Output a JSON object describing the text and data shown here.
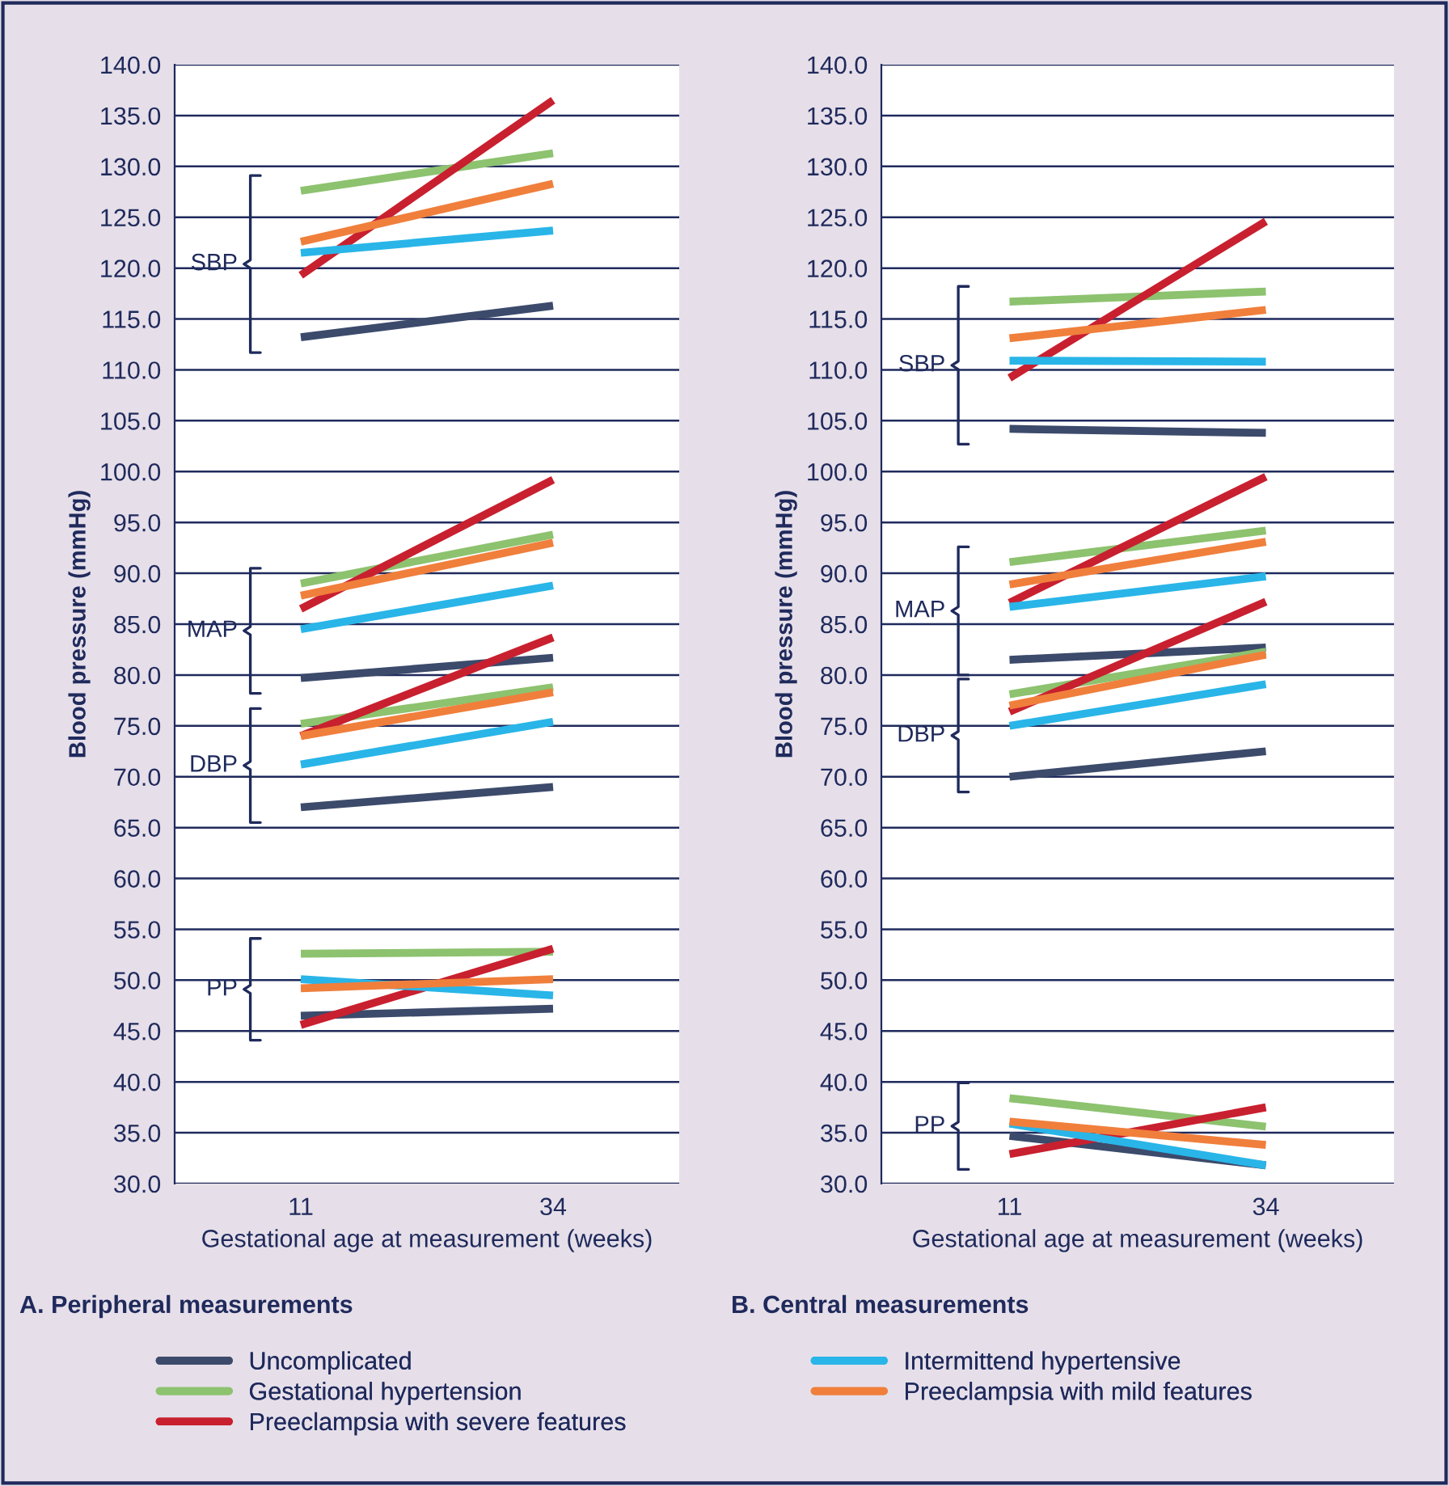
{
  "chart_data": [
    {
      "type": "line",
      "title": "A. Peripheral measurements",
      "xlabel": "Gestational age at measurement (weeks)",
      "ylabel": "Blood pressure (mmHg)",
      "categories": [
        "11",
        "34"
      ],
      "ylim": [
        30,
        140
      ],
      "yticks": [
        {
          "value": 30,
          "label": "30.0"
        },
        {
          "value": 35,
          "label": "35.0"
        },
        {
          "value": 40,
          "label": "40.0"
        },
        {
          "value": 45,
          "label": "45.0"
        },
        {
          "value": 50,
          "label": "50.0"
        },
        {
          "value": 55,
          "label": "55.0"
        },
        {
          "value": 60,
          "label": "60.0"
        },
        {
          "value": 65,
          "label": "65.0"
        },
        {
          "value": 70,
          "label": "70.0"
        },
        {
          "value": 75,
          "label": "75.0"
        },
        {
          "value": 80,
          "label": "80.0"
        },
        {
          "value": 85,
          "label": "85.0"
        },
        {
          "value": 90,
          "label": "90.0"
        },
        {
          "value": 95,
          "label": "95.0"
        },
        {
          "value": 100,
          "label": "100.0"
        },
        {
          "value": 105,
          "label": "105.0"
        },
        {
          "value": 110,
          "label": "110.0"
        },
        {
          "value": 115,
          "label": "115.0"
        },
        {
          "value": 120,
          "label": "120.0"
        },
        {
          "value": 125,
          "label": "125.0"
        },
        {
          "value": 130,
          "label": "130.0"
        },
        {
          "value": 135,
          "label": "135.0"
        },
        {
          "value": 140,
          "label": "140.0"
        }
      ],
      "grid": "y",
      "legend": "bottom",
      "marker": "none",
      "line_style": "solid",
      "annotations": [
        "SBP",
        "MAP",
        "DBP",
        "PP"
      ],
      "series": [
        {
          "name": "Uncomplicated",
          "color": "#3c4a6b",
          "values": [
            113.2,
            116.3
          ]
        },
        {
          "name": "Gestational hypertension",
          "color": "#8dc26f",
          "values": [
            127.6,
            131.3
          ]
        },
        {
          "name": "Preeclampsia with severe features",
          "color": "#c8202f",
          "values": [
            119.3,
            136.5
          ]
        },
        {
          "name": "Intermittend hypertensive",
          "color": "#29b5e8",
          "values": [
            121.5,
            123.7
          ]
        },
        {
          "name": "Preeclampsia with mild features",
          "color": "#f07f3c",
          "values": [
            122.6,
            128.3
          ]
        },
        {
          "color": "#3c4a6b",
          "values": [
            79.7,
            81.7
          ]
        },
        {
          "color": "#8dc26f",
          "values": [
            89.0,
            93.8
          ]
        },
        {
          "color": "#c8202f",
          "values": [
            86.5,
            99.2
          ]
        },
        {
          "color": "#29b5e8",
          "values": [
            84.5,
            88.8
          ]
        },
        {
          "color": "#f07f3c",
          "values": [
            87.8,
            93.0
          ]
        },
        {
          "color": "#3c4a6b",
          "values": [
            67.0,
            69.0
          ]
        },
        {
          "color": "#8dc26f",
          "values": [
            75.2,
            78.8
          ]
        },
        {
          "color": "#c8202f",
          "values": [
            74.0,
            83.7
          ]
        },
        {
          "color": "#29b5e8",
          "values": [
            71.2,
            75.4
          ]
        },
        {
          "color": "#f07f3c",
          "values": [
            74.0,
            78.3
          ]
        },
        {
          "color": "#3c4a6b",
          "values": [
            46.5,
            47.2
          ]
        },
        {
          "color": "#8dc26f",
          "values": [
            52.6,
            52.8
          ]
        },
        {
          "color": "#c8202f",
          "values": [
            45.6,
            53.1
          ]
        },
        {
          "color": "#29b5e8",
          "values": [
            50.1,
            48.5
          ]
        },
        {
          "color": "#f07f3c",
          "values": [
            49.2,
            50.1
          ]
        }
      ]
    },
    {
      "type": "line",
      "title": "B. Central measurements",
      "xlabel": "Gestational age at measurement (weeks)",
      "ylabel": "Blood pressure (mmHg)",
      "categories": [
        "11",
        "34"
      ],
      "ylim": [
        30,
        140
      ],
      "yticks": [
        {
          "value": 30,
          "label": "30.0"
        },
        {
          "value": 35,
          "label": "35.0"
        },
        {
          "value": 40,
          "label": "40.0"
        },
        {
          "value": 45,
          "label": "45.0"
        },
        {
          "value": 50,
          "label": "50.0"
        },
        {
          "value": 55,
          "label": "55.0"
        },
        {
          "value": 60,
          "label": "60.0"
        },
        {
          "value": 65,
          "label": "65.0"
        },
        {
          "value": 70,
          "label": "70.0"
        },
        {
          "value": 75,
          "label": "75.0"
        },
        {
          "value": 80,
          "label": "80.0"
        },
        {
          "value": 85,
          "label": "85.0"
        },
        {
          "value": 90,
          "label": "90.0"
        },
        {
          "value": 95,
          "label": "95.0"
        },
        {
          "value": 100,
          "label": "100.0"
        },
        {
          "value": 105,
          "label": "105.0"
        },
        {
          "value": 110,
          "label": "110.0"
        },
        {
          "value": 115,
          "label": "115.0"
        },
        {
          "value": 120,
          "label": "120.0"
        },
        {
          "value": 125,
          "label": "125.0"
        },
        {
          "value": 130,
          "label": "130.0"
        },
        {
          "value": 135,
          "label": "135.0"
        },
        {
          "value": 140,
          "label": "140.0"
        }
      ],
      "grid": "y",
      "legend": "bottom",
      "marker": "none",
      "line_style": "solid",
      "annotations": [
        "SBP",
        "MAP",
        "DBP",
        "PP"
      ],
      "series": [
        {
          "color": "#3c4a6b",
          "values": [
            104.2,
            103.8
          ]
        },
        {
          "color": "#8dc26f",
          "values": [
            116.7,
            117.7
          ]
        },
        {
          "color": "#c8202f",
          "values": [
            109.2,
            124.6
          ]
        },
        {
          "color": "#29b5e8",
          "values": [
            110.9,
            110.8
          ]
        },
        {
          "color": "#f07f3c",
          "values": [
            113.1,
            115.9
          ]
        },
        {
          "color": "#3c4a6b",
          "values": [
            81.5,
            82.7
          ]
        },
        {
          "color": "#8dc26f",
          "values": [
            91.1,
            94.2
          ]
        },
        {
          "color": "#c8202f",
          "values": [
            87.1,
            99.5
          ]
        },
        {
          "color": "#29b5e8",
          "values": [
            86.7,
            89.7
          ]
        },
        {
          "color": "#f07f3c",
          "values": [
            88.9,
            93.1
          ]
        },
        {
          "color": "#3c4a6b",
          "values": [
            70.0,
            72.5
          ]
        },
        {
          "color": "#8dc26f",
          "values": [
            78.1,
            82.3
          ]
        },
        {
          "color": "#c8202f",
          "values": [
            76.4,
            87.2
          ]
        },
        {
          "color": "#29b5e8",
          "values": [
            75.0,
            79.1
          ]
        },
        {
          "color": "#f07f3c",
          "values": [
            77.0,
            82.0
          ]
        },
        {
          "color": "#3c4a6b",
          "values": [
            34.7,
            31.8
          ]
        },
        {
          "color": "#8dc26f",
          "values": [
            38.4,
            35.6
          ]
        },
        {
          "color": "#c8202f",
          "values": [
            32.9,
            37.5
          ]
        },
        {
          "color": "#29b5e8",
          "values": [
            35.9,
            31.8
          ]
        },
        {
          "color": "#f07f3c",
          "values": [
            36.1,
            33.8
          ]
        }
      ]
    }
  ]
}
